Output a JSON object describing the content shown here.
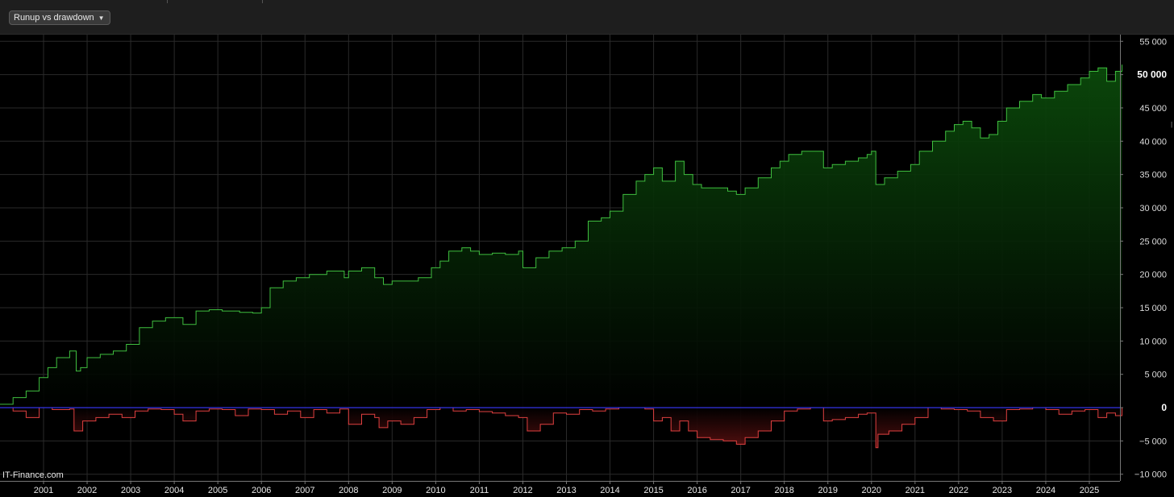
{
  "toolbar": {
    "view_select_label": "Runup vs drawdown"
  },
  "watermark": "IT-Finance.com",
  "colors": {
    "runup_line": "#3fbf3f",
    "runup_fill": "#0a3a0a",
    "drawdown_line": "#e04040",
    "drawdown_fill": "#4a0f0f",
    "zero_line": "#3a3aff",
    "grid": "#2a2a2a",
    "background": "#000000"
  },
  "chart_data": {
    "type": "area",
    "title": "",
    "xlabel": "",
    "ylabel": "",
    "ylim": [
      -11000,
      56000
    ],
    "xlim": [
      2000.0,
      2025.75
    ],
    "y_ticks": [
      {
        "value": 55000,
        "label": "55 000",
        "bold": false
      },
      {
        "value": 50000,
        "label": "50 000",
        "bold": true
      },
      {
        "value": 45000,
        "label": "45 000",
        "bold": false
      },
      {
        "value": 40000,
        "label": "40 000",
        "bold": false
      },
      {
        "value": 35000,
        "label": "35 000",
        "bold": false
      },
      {
        "value": 30000,
        "label": "30 000",
        "bold": false
      },
      {
        "value": 25000,
        "label": "25 000",
        "bold": false
      },
      {
        "value": 20000,
        "label": "20 000",
        "bold": false
      },
      {
        "value": 15000,
        "label": "15 000",
        "bold": false
      },
      {
        "value": 10000,
        "label": "10 000",
        "bold": false
      },
      {
        "value": 5000,
        "label": "5 000",
        "bold": false
      },
      {
        "value": 0,
        "label": "0",
        "bold": true
      },
      {
        "value": -5000,
        "label": "−5 000",
        "bold": false
      },
      {
        "value": -10000,
        "label": "−10 000",
        "bold": false
      }
    ],
    "x_ticks": [
      "2001",
      "2002",
      "2003",
      "2004",
      "2005",
      "2006",
      "2007",
      "2008",
      "2009",
      "2010",
      "2011",
      "2012",
      "2013",
      "2014",
      "2015",
      "2016",
      "2017",
      "2018",
      "2019",
      "2020",
      "2021",
      "2022",
      "2023",
      "2024",
      "2025"
    ],
    "series": [
      {
        "kind": "runup",
        "x": [
          2000.0,
          2000.3,
          2000.6,
          2000.9,
          2001.1,
          2001.3,
          2001.6,
          2001.75,
          2001.85,
          2002.0,
          2002.3,
          2002.6,
          2002.9,
          2003.2,
          2003.5,
          2003.8,
          2004.0,
          2004.2,
          2004.5,
          2004.8,
          2005.1,
          2005.5,
          2005.8,
          2006.0,
          2006.2,
          2006.5,
          2006.8,
          2007.1,
          2007.5,
          2007.9,
          2008.0,
          2008.3,
          2008.6,
          2008.8,
          2009.0,
          2009.3,
          2009.6,
          2009.9,
          2010.1,
          2010.3,
          2010.6,
          2010.8,
          2011.0,
          2011.3,
          2011.6,
          2011.9,
          2012.0,
          2012.3,
          2012.6,
          2012.9,
          2013.2,
          2013.5,
          2013.8,
          2014.0,
          2014.3,
          2014.6,
          2014.8,
          2015.0,
          2015.2,
          2015.5,
          2015.7,
          2015.9,
          2016.1,
          2016.4,
          2016.7,
          2016.9,
          2017.1,
          2017.4,
          2017.7,
          2017.9,
          2018.1,
          2018.4,
          2018.7,
          2018.9,
          2019.1,
          2019.4,
          2019.7,
          2019.9,
          2020.0,
          2020.1,
          2020.3,
          2020.6,
          2020.9,
          2021.1,
          2021.4,
          2021.7,
          2021.9,
          2022.1,
          2022.3,
          2022.5,
          2022.7,
          2022.9,
          2023.1,
          2023.4,
          2023.7,
          2023.9,
          2024.2,
          2024.5,
          2024.8,
          2025.0,
          2025.2,
          2025.4,
          2025.6,
          2025.75
        ],
        "y": [
          500,
          1500,
          2500,
          4500,
          6000,
          7500,
          8500,
          5500,
          6000,
          7500,
          8000,
          8500,
          9500,
          12000,
          13000,
          13500,
          13500,
          12500,
          14500,
          14700,
          14500,
          14300,
          14200,
          15000,
          18000,
          19000,
          19500,
          20000,
          20500,
          19500,
          20500,
          21000,
          19500,
          18500,
          19000,
          19000,
          19500,
          21000,
          22000,
          23500,
          24000,
          23500,
          23000,
          23200,
          23000,
          23500,
          21000,
          22500,
          23500,
          24000,
          25000,
          28000,
          28500,
          29500,
          32000,
          34000,
          35000,
          36000,
          34000,
          37000,
          35000,
          33500,
          33000,
          33000,
          32500,
          32000,
          33000,
          34500,
          36000,
          37000,
          38000,
          38500,
          38500,
          36000,
          36500,
          37000,
          37500,
          38000,
          38500,
          33500,
          34500,
          35500,
          36500,
          38500,
          40000,
          41500,
          42500,
          43000,
          42000,
          40500,
          41000,
          43000,
          45000,
          46000,
          47000,
          46500,
          47500,
          48500,
          49500,
          50500,
          51000,
          49000,
          50500,
          51500
        ]
      },
      {
        "kind": "drawdown",
        "x": [
          2000.0,
          2000.3,
          2000.6,
          2000.9,
          2001.2,
          2001.6,
          2001.7,
          2001.9,
          2002.2,
          2002.5,
          2002.8,
          2003.1,
          2003.4,
          2003.7,
          2004.0,
          2004.2,
          2004.5,
          2004.8,
          2005.1,
          2005.4,
          2005.7,
          2006.0,
          2006.3,
          2006.6,
          2006.9,
          2007.2,
          2007.5,
          2007.8,
          2008.0,
          2008.3,
          2008.6,
          2008.7,
          2008.9,
          2009.2,
          2009.5,
          2009.8,
          2010.1,
          2010.4,
          2010.7,
          2011.0,
          2011.3,
          2011.6,
          2011.9,
          2012.1,
          2012.4,
          2012.7,
          2013.0,
          2013.3,
          2013.6,
          2013.9,
          2014.2,
          2014.5,
          2014.8,
          2015.0,
          2015.2,
          2015.4,
          2015.6,
          2015.8,
          2016.0,
          2016.3,
          2016.6,
          2016.9,
          2017.1,
          2017.4,
          2017.7,
          2018.0,
          2018.3,
          2018.6,
          2018.9,
          2019.1,
          2019.4,
          2019.7,
          2019.9,
          2020.1,
          2020.15,
          2020.4,
          2020.7,
          2021.0,
          2021.3,
          2021.6,
          2021.9,
          2022.2,
          2022.5,
          2022.8,
          2023.1,
          2023.4,
          2023.7,
          2024.0,
          2024.3,
          2024.6,
          2024.9,
          2025.2,
          2025.4,
          2025.6,
          2025.75
        ],
        "y": [
          0,
          -500,
          -1500,
          0,
          -300,
          -200,
          -3500,
          -2000,
          -1500,
          -1000,
          -1500,
          -500,
          -200,
          -300,
          -1000,
          -2000,
          -500,
          -200,
          -300,
          -1200,
          -200,
          -300,
          -1000,
          -500,
          -1500,
          -300,
          -800,
          -200,
          -2500,
          -1000,
          -1500,
          -3000,
          -2000,
          -2500,
          -1500,
          -300,
          0,
          -500,
          -300,
          -600,
          -800,
          -1200,
          -1500,
          -3500,
          -2500,
          -800,
          -1000,
          -300,
          -500,
          -200,
          0,
          0,
          -200,
          -2000,
          -1500,
          -3500,
          -2000,
          -3500,
          -4500,
          -4800,
          -5000,
          -5500,
          -4500,
          -3500,
          -2000,
          -500,
          -200,
          0,
          -2000,
          -1800,
          -1500,
          -1000,
          -800,
          -6000,
          -4000,
          -3500,
          -2500,
          -1500,
          0,
          -200,
          -300,
          -500,
          -1500,
          -2000,
          -300,
          -200,
          0,
          -300,
          -1000,
          -500,
          -300,
          -1500,
          -800,
          -1200,
          0
        ]
      }
    ]
  }
}
